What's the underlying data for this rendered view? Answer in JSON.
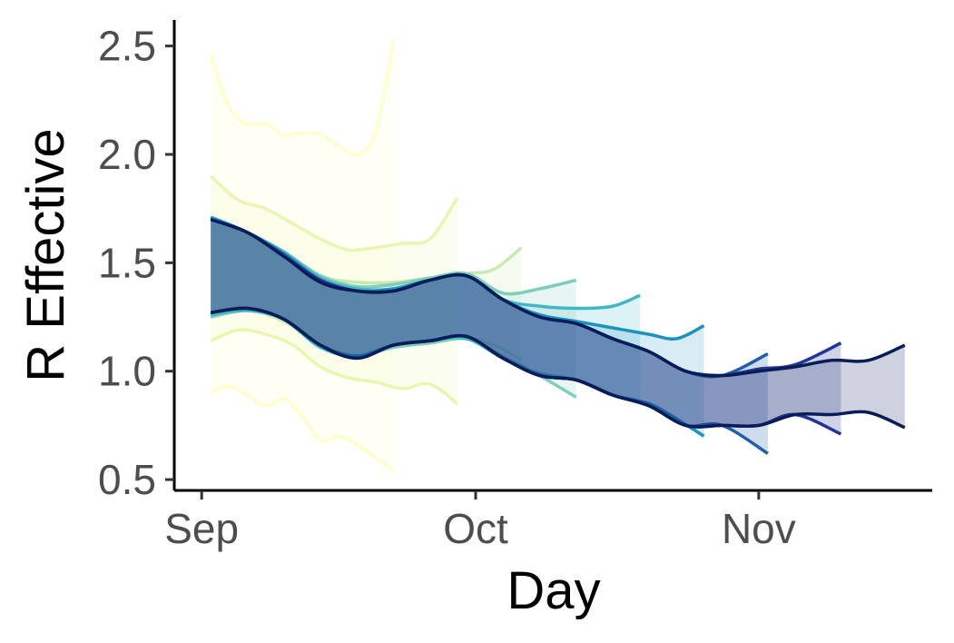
{
  "chart_data": {
    "type": "area",
    "title": "",
    "xlabel": "Day",
    "ylabel": "R Effective",
    "ylim": [
      0.45,
      2.62
    ],
    "y_ticks": [
      0.5,
      1.0,
      1.5,
      2.0,
      2.5
    ],
    "y_tick_labels": [
      "0.5",
      "1.0",
      "1.5",
      "2.0",
      "2.5"
    ],
    "x_ticks": [
      {
        "date": "2020-09-01",
        "label": "Sep"
      },
      {
        "date": "2020-10-01",
        "label": "Oct"
      },
      {
        "date": "2020-11-01",
        "label": "Nov"
      }
    ],
    "x_range": [
      "2020-08-29",
      "2020-11-20"
    ],
    "grid": false,
    "legend": "none",
    "colors": [
      "#ffffcc",
      "#e8f6b1",
      "#c7e9b4",
      "#7fcdbb",
      "#41b6c4",
      "#1d91c0",
      "#225ea8",
      "#253494",
      "#081d58"
    ],
    "series": [
      {
        "color": "#ffffcc",
        "fill_opacity": 0.2,
        "dates": [
          "2020-09-02",
          "2020-09-04",
          "2020-09-06",
          "2020-09-08",
          "2020-09-10",
          "2020-09-12",
          "2020-09-14",
          "2020-09-16",
          "2020-09-18",
          "2020-09-20",
          "2020-09-22"
        ],
        "upper": [
          2.46,
          2.22,
          2.14,
          2.14,
          2.09,
          2.1,
          2.09,
          2.04,
          2.0,
          2.1,
          2.53
        ],
        "lower": [
          0.9,
          0.93,
          0.89,
          0.84,
          0.87,
          0.79,
          0.68,
          0.7,
          0.66,
          0.6,
          0.54
        ]
      },
      {
        "color": "#e8f6b1",
        "fill_opacity": 0.18,
        "dates": [
          "2020-09-02",
          "2020-09-05",
          "2020-09-08",
          "2020-09-11",
          "2020-09-14",
          "2020-09-17",
          "2020-09-20",
          "2020-09-23",
          "2020-09-26",
          "2020-09-29"
        ],
        "upper": [
          1.9,
          1.79,
          1.75,
          1.68,
          1.61,
          1.56,
          1.57,
          1.59,
          1.61,
          1.8
        ],
        "lower": [
          1.14,
          1.19,
          1.17,
          1.12,
          1.02,
          0.97,
          0.95,
          0.92,
          0.94,
          0.85
        ]
      },
      {
        "color": "#c7e9b4",
        "fill_opacity": 0.18,
        "dates": [
          "2020-09-02",
          "2020-09-06",
          "2020-09-10",
          "2020-09-14",
          "2020-09-18",
          "2020-09-22",
          "2020-09-26",
          "2020-09-30",
          "2020-10-03",
          "2020-10-06"
        ],
        "upper": [
          1.71,
          1.64,
          1.55,
          1.44,
          1.41,
          1.41,
          1.43,
          1.45,
          1.47,
          1.57
        ],
        "lower": [
          1.25,
          1.28,
          1.23,
          1.12,
          1.07,
          1.11,
          1.13,
          1.15,
          1.12,
          1.05
        ]
      },
      {
        "color": "#7fcdbb",
        "fill_opacity": 0.18,
        "dates": [
          "2020-09-02",
          "2020-09-06",
          "2020-09-10",
          "2020-09-14",
          "2020-09-18",
          "2020-09-22",
          "2020-09-26",
          "2020-09-30",
          "2020-10-04",
          "2020-10-08",
          "2020-10-12"
        ],
        "upper": [
          1.71,
          1.64,
          1.55,
          1.44,
          1.39,
          1.4,
          1.43,
          1.45,
          1.36,
          1.38,
          1.42
        ],
        "lower": [
          1.25,
          1.28,
          1.24,
          1.11,
          1.07,
          1.11,
          1.13,
          1.15,
          1.07,
          0.98,
          0.88
        ]
      },
      {
        "color": "#41b6c4",
        "fill_opacity": 0.18,
        "dates": [
          "2020-09-02",
          "2020-09-06",
          "2020-09-10",
          "2020-09-14",
          "2020-09-18",
          "2020-09-22",
          "2020-09-26",
          "2020-09-30",
          "2020-10-04",
          "2020-10-08",
          "2020-10-12",
          "2020-10-16",
          "2020-10-19"
        ],
        "upper": [
          1.71,
          1.64,
          1.55,
          1.43,
          1.38,
          1.38,
          1.42,
          1.44,
          1.33,
          1.3,
          1.29,
          1.3,
          1.35
        ],
        "lower": [
          1.26,
          1.28,
          1.24,
          1.11,
          1.07,
          1.12,
          1.14,
          1.15,
          1.06,
          0.99,
          0.96,
          0.89,
          0.86
        ]
      },
      {
        "color": "#1d91c0",
        "fill_opacity": 0.18,
        "dates": [
          "2020-09-02",
          "2020-09-06",
          "2020-09-10",
          "2020-09-14",
          "2020-09-18",
          "2020-09-22",
          "2020-09-26",
          "2020-09-30",
          "2020-10-04",
          "2020-10-08",
          "2020-10-12",
          "2020-10-16",
          "2020-10-20",
          "2020-10-23",
          "2020-10-26"
        ],
        "upper": [
          1.71,
          1.64,
          1.54,
          1.42,
          1.37,
          1.38,
          1.42,
          1.44,
          1.33,
          1.26,
          1.23,
          1.2,
          1.17,
          1.15,
          1.21
        ],
        "lower": [
          1.27,
          1.29,
          1.24,
          1.12,
          1.07,
          1.12,
          1.14,
          1.16,
          1.06,
          0.98,
          0.96,
          0.89,
          0.85,
          0.78,
          0.7
        ]
      },
      {
        "color": "#225ea8",
        "fill_opacity": 0.22,
        "dates": [
          "2020-09-02",
          "2020-09-06",
          "2020-09-10",
          "2020-09-14",
          "2020-09-18",
          "2020-09-22",
          "2020-09-26",
          "2020-09-30",
          "2020-10-04",
          "2020-10-08",
          "2020-10-12",
          "2020-10-16",
          "2020-10-20",
          "2020-10-24",
          "2020-10-28",
          "2020-11-02"
        ],
        "upper": [
          1.7,
          1.64,
          1.54,
          1.42,
          1.37,
          1.37,
          1.42,
          1.44,
          1.33,
          1.25,
          1.22,
          1.15,
          1.09,
          1.0,
          0.98,
          1.08
        ],
        "lower": [
          1.27,
          1.29,
          1.24,
          1.12,
          1.06,
          1.12,
          1.14,
          1.16,
          1.06,
          0.98,
          0.96,
          0.89,
          0.84,
          0.75,
          0.75,
          0.62
        ]
      },
      {
        "color": "#253494",
        "fill_opacity": 0.22,
        "dates": [
          "2020-09-02",
          "2020-09-06",
          "2020-09-10",
          "2020-09-14",
          "2020-09-18",
          "2020-09-22",
          "2020-09-26",
          "2020-09-30",
          "2020-10-04",
          "2020-10-08",
          "2020-10-12",
          "2020-10-16",
          "2020-10-20",
          "2020-10-24",
          "2020-10-28",
          "2020-11-01",
          "2020-11-05",
          "2020-11-10"
        ],
        "upper": [
          1.7,
          1.64,
          1.53,
          1.42,
          1.37,
          1.37,
          1.42,
          1.44,
          1.33,
          1.25,
          1.22,
          1.15,
          1.09,
          1.0,
          0.98,
          1.01,
          1.03,
          1.13
        ],
        "lower": [
          1.27,
          1.29,
          1.24,
          1.12,
          1.06,
          1.12,
          1.14,
          1.16,
          1.06,
          0.98,
          0.96,
          0.89,
          0.84,
          0.75,
          0.75,
          0.75,
          0.8,
          0.71
        ]
      },
      {
        "color": "#081d58",
        "fill_opacity": 0.2,
        "dates": [
          "2020-09-02",
          "2020-09-06",
          "2020-09-10",
          "2020-09-14",
          "2020-09-18",
          "2020-09-22",
          "2020-09-26",
          "2020-09-30",
          "2020-10-04",
          "2020-10-08",
          "2020-10-12",
          "2020-10-16",
          "2020-10-20",
          "2020-10-24",
          "2020-10-28",
          "2020-11-01",
          "2020-11-05",
          "2020-11-09",
          "2020-11-13",
          "2020-11-17"
        ],
        "upper": [
          1.7,
          1.64,
          1.53,
          1.41,
          1.37,
          1.37,
          1.42,
          1.44,
          1.33,
          1.25,
          1.22,
          1.15,
          1.09,
          1.0,
          0.98,
          1.0,
          1.02,
          1.05,
          1.05,
          1.12
        ],
        "lower": [
          1.27,
          1.29,
          1.24,
          1.12,
          1.06,
          1.12,
          1.14,
          1.16,
          1.06,
          0.98,
          0.96,
          0.89,
          0.84,
          0.75,
          0.75,
          0.75,
          0.8,
          0.8,
          0.81,
          0.74
        ]
      }
    ]
  }
}
